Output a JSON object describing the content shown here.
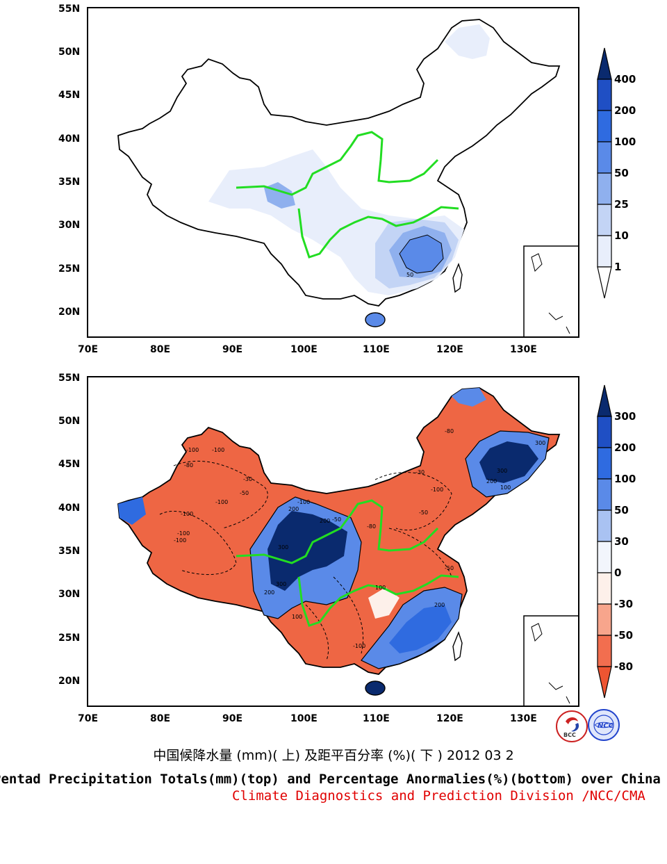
{
  "top_map": {
    "lat_ticks": [
      "55N",
      "50N",
      "45N",
      "40N",
      "35N",
      "30N",
      "25N",
      "20N"
    ],
    "lon_ticks": [
      "70E",
      "80E",
      "90E",
      "100E",
      "110E",
      "120E",
      "130E"
    ],
    "contour_labels": [
      "50"
    ],
    "colorbar": {
      "labels": [
        "400",
        "200",
        "100",
        "50",
        "25",
        "10",
        "1"
      ],
      "colors": [
        "#0a2a6e",
        "#1f4fc4",
        "#2f6be0",
        "#5a8ae8",
        "#8fb0ee",
        "#c3d4f5",
        "#e8eefb",
        "#ffffff"
      ]
    }
  },
  "bottom_map": {
    "lat_ticks": [
      "55N",
      "50N",
      "45N",
      "40N",
      "35N",
      "30N",
      "25N",
      "20N"
    ],
    "lon_ticks": [
      "70E",
      "80E",
      "90E",
      "100E",
      "110E",
      "120E",
      "130E"
    ],
    "contour_labels": [
      "-100",
      "-100",
      "-80",
      "-30",
      "-50",
      "-100",
      "-100",
      "-100",
      "-100",
      "200",
      "300",
      "200",
      "300",
      "-100",
      "200",
      "100",
      "-50",
      "-80",
      "300",
      "200",
      "100",
      "300",
      "-80",
      "-30",
      "-100",
      "-50",
      "-50",
      "100",
      "200",
      "-100"
    ],
    "colorbar": {
      "labels": [
        "300",
        "200",
        "100",
        "50",
        "30",
        "0",
        "-30",
        "-50",
        "-80"
      ],
      "colors": [
        "#0a2a6e",
        "#1f4fc4",
        "#2f6be0",
        "#5a8ae8",
        "#a9c2f2",
        "#f2f5fc",
        "#fdf0ea",
        "#f7a58c",
        "#f26e4f",
        "#ee5532"
      ]
    }
  },
  "colors": {
    "river": "#22dd22",
    "positive_dark": "#0a2a6e",
    "negative": "#ee6644",
    "division_text": "#e00000"
  },
  "caption": {
    "chinese": "中国候降水量 (mm)( 上) 及距平百分率 (%)( 下 ) 2012 03 2",
    "english": "Pentad Precipitation Totals(mm)(top) and Percentage Anormalies(%)(bottom) over China",
    "division": "Climate Diagnostics and Prediction Division /NCC/CMA"
  },
  "logos": {
    "bcc": "BCC",
    "ncc": "NCC"
  }
}
